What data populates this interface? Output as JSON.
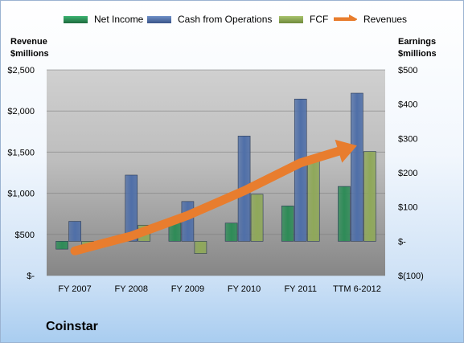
{
  "chart_data": {
    "type": "bar",
    "categories": [
      "FY 2007",
      "FY 2008",
      "FY 2009",
      "FY 2010",
      "FY 2011",
      "TTM 6-2012"
    ],
    "series": [
      {
        "name": "Net Income",
        "axis": "right",
        "kind": "bar",
        "color": "#2e8b57",
        "values": [
          -23,
          9,
          53,
          53,
          103,
          160
        ]
      },
      {
        "name": "Cash from Operations",
        "axis": "right",
        "kind": "bar",
        "color": "#4f6fa8",
        "values": [
          58,
          193,
          116,
          307,
          415,
          432
        ]
      },
      {
        "name": "FCF",
        "axis": "right",
        "kind": "bar",
        "color": "#8fa85a",
        "values": [
          -10,
          47,
          -36,
          137,
          240,
          262
        ]
      },
      {
        "name": "Revenues",
        "axis": "left",
        "kind": "arrow",
        "color": "#e87d2e",
        "values": [
          300,
          480,
          730,
          1030,
          1370,
          1580
        ]
      }
    ],
    "left_axis": {
      "label_line1": "Revenue",
      "label_line2": "$millions",
      "ylim": [
        0,
        2500
      ],
      "ticks": [
        "$2,500",
        "$2,000",
        "$1,500",
        "$1,000",
        "$500",
        "$-"
      ]
    },
    "right_axis": {
      "label_line1": "Earnings",
      "label_line2": "$millions",
      "ylim": [
        -100,
        500
      ],
      "ticks": [
        "$500",
        "$400",
        "$300",
        "$200",
        "$100",
        "$-",
        "$(100)"
      ]
    },
    "legend_position": "top",
    "grid": true
  },
  "company": "Coinstar"
}
